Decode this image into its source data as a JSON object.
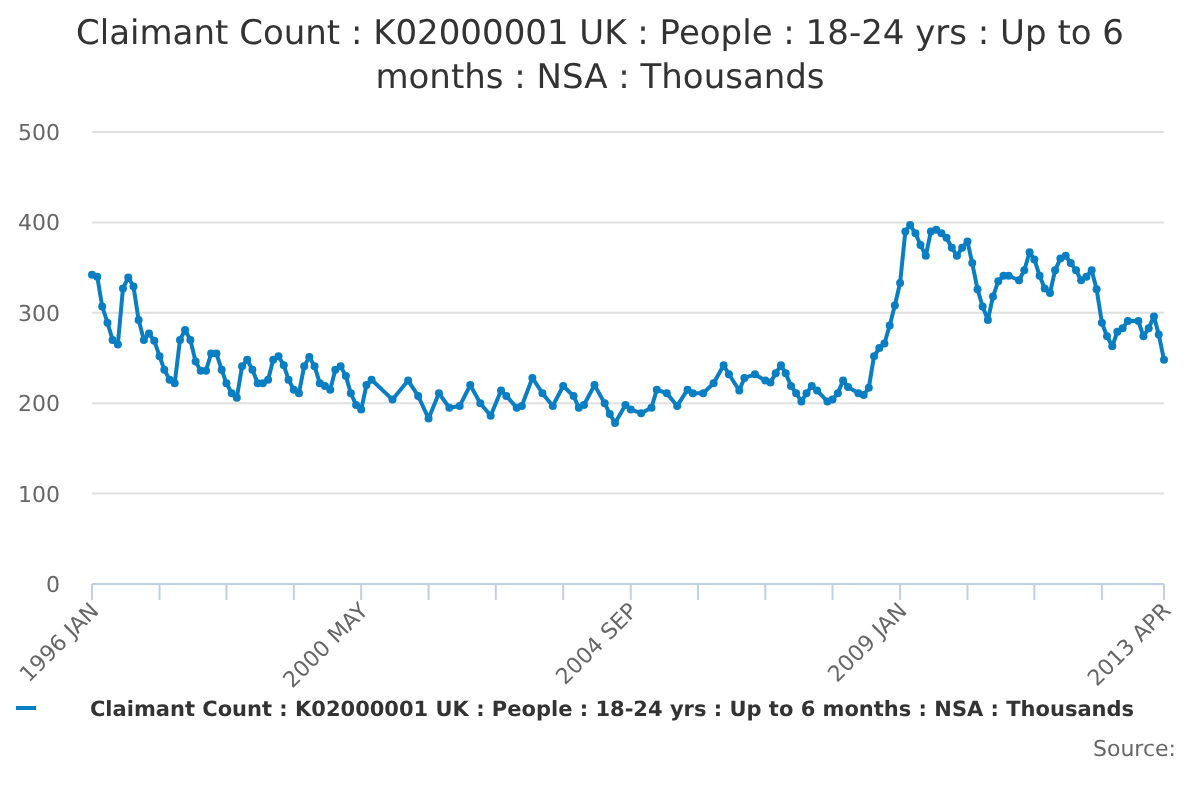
{
  "chart_data": {
    "type": "line",
    "title": "Claimant Count : K02000001 UK : People : 18-24 yrs : Up to 6 months : NSA : Thousands",
    "x": [
      "1996-01",
      "1996-02",
      "1996-03",
      "1996-04",
      "1996-05",
      "1996-06",
      "1996-07",
      "1996-08",
      "1996-09",
      "1996-10",
      "1996-11",
      "1996-12",
      "1997-01",
      "1997-02",
      "1997-03",
      "1997-04",
      "1997-05",
      "1997-06",
      "1997-07",
      "1997-08",
      "1997-09",
      "1997-10",
      "1997-11",
      "1997-12",
      "1998-01",
      "1998-02",
      "1998-03",
      "1998-04",
      "1998-05",
      "1998-06",
      "1998-07",
      "1998-08",
      "1998-09",
      "1998-10",
      "1998-11",
      "1998-12",
      "1999-01",
      "1999-02",
      "1999-03",
      "1999-04",
      "1999-05",
      "1999-06",
      "1999-07",
      "1999-08",
      "1999-09",
      "1999-10",
      "1999-11",
      "1999-12",
      "2000-01",
      "2000-02",
      "2000-03",
      "2000-04",
      "2000-05",
      "2000-06",
      "2000-07",
      "2000-11",
      "2001-02",
      "2001-04",
      "2001-06",
      "2001-08",
      "2001-10",
      "2001-12",
      "2002-02",
      "2002-04",
      "2002-06",
      "2002-08",
      "2002-09",
      "2002-11",
      "2002-12",
      "2003-02",
      "2003-04",
      "2003-06",
      "2003-08",
      "2003-10",
      "2003-11",
      "2003-12",
      "2004-02",
      "2004-04",
      "2004-05",
      "2004-06",
      "2004-08",
      "2004-09",
      "2004-11",
      "2005-01",
      "2005-02",
      "2005-04",
      "2005-06",
      "2005-08",
      "2005-09",
      "2005-11",
      "2006-01",
      "2006-03",
      "2006-04",
      "2006-06",
      "2006-07",
      "2006-09",
      "2006-11",
      "2006-12",
      "2007-01",
      "2007-02",
      "2007-03",
      "2007-04",
      "2007-05",
      "2007-06",
      "2007-07",
      "2007-08",
      "2007-09",
      "2007-11",
      "2007-12",
      "2008-01",
      "2008-02",
      "2008-03",
      "2008-05",
      "2008-06",
      "2008-07",
      "2008-08",
      "2008-09",
      "2008-10",
      "2008-11",
      "2008-12",
      "2009-01",
      "2009-02",
      "2009-03",
      "2009-04",
      "2009-05",
      "2009-06",
      "2009-07",
      "2009-08",
      "2009-09",
      "2009-10",
      "2009-11",
      "2009-12",
      "2010-01",
      "2010-02",
      "2010-03",
      "2010-04",
      "2010-05",
      "2010-06",
      "2010-07",
      "2010-08",
      "2010-09",
      "2010-10",
      "2010-12",
      "2011-01",
      "2011-02",
      "2011-03",
      "2011-04",
      "2011-05",
      "2011-06",
      "2011-07",
      "2011-08",
      "2011-09",
      "2011-10",
      "2011-11",
      "2011-12",
      "2012-01",
      "2012-02",
      "2012-03",
      "2012-04",
      "2012-05",
      "2012-06",
      "2012-07",
      "2012-08",
      "2012-09",
      "2012-11",
      "2012-12",
      "2013-01",
      "2013-02",
      "2013-03",
      "2013-04"
    ],
    "series": [
      {
        "name": "Claimant Count : K02000001 UK : People : 18-24 yrs : Up to 6 months : NSA : Thousands",
        "color": "#0a7ec2",
        "values": [
          342,
          340,
          307,
          289,
          270,
          265,
          327,
          339,
          329,
          292,
          270,
          277,
          269,
          252,
          237,
          226,
          222,
          270,
          281,
          270,
          246,
          236,
          236,
          255,
          255,
          237,
          222,
          211,
          206,
          241,
          248,
          237,
          222,
          222,
          226,
          248,
          252,
          242,
          226,
          215,
          211,
          241,
          251,
          241,
          222,
          219,
          215,
          237,
          241,
          230,
          211,
          198,
          193,
          220,
          226,
          204,
          225,
          208,
          183,
          211,
          195,
          197,
          220,
          200,
          186,
          214,
          208,
          195,
          197,
          228,
          211,
          197,
          219,
          208,
          195,
          198,
          220,
          200,
          188,
          178,
          198,
          193,
          189,
          195,
          215,
          211,
          197,
          215,
          211,
          211,
          222,
          242,
          232,
          214,
          228,
          232,
          225,
          223,
          233,
          242,
          233,
          219,
          211,
          202,
          211,
          219,
          214,
          202,
          204,
          211,
          225,
          218,
          211,
          209,
          217,
          252,
          261,
          266,
          286,
          308,
          333,
          390,
          397,
          388,
          375,
          363,
          390,
          392,
          388,
          383,
          372,
          363,
          372,
          379,
          355,
          326,
          307,
          292,
          318,
          335,
          341,
          341,
          336,
          347,
          367,
          359,
          341,
          327,
          322,
          347,
          360,
          363,
          355,
          347,
          336,
          340,
          347,
          326,
          289,
          274,
          263,
          279,
          283,
          291,
          291,
          274,
          283,
          296,
          276,
          248
        ]
      }
    ],
    "xlim": [
      "1996-01",
      "2013-04"
    ],
    "xticks": [
      {
        "value": "1996-01",
        "label": "1996 JAN"
      },
      {
        "value": "1997-02",
        "label": null
      },
      {
        "value": "1998-03",
        "label": null
      },
      {
        "value": "1999-04",
        "label": null
      },
      {
        "value": "2000-05",
        "label": "2000 MAY"
      },
      {
        "value": "2001-06",
        "label": null
      },
      {
        "value": "2002-07",
        "label": null
      },
      {
        "value": "2003-08",
        "label": null
      },
      {
        "value": "2004-09",
        "label": "2004 SEP"
      },
      {
        "value": "2005-10",
        "label": null
      },
      {
        "value": "2006-11",
        "label": null
      },
      {
        "value": "2007-12",
        "label": null
      },
      {
        "value": "2009-01",
        "label": "2009 JAN"
      },
      {
        "value": "2010-02",
        "label": null
      },
      {
        "value": "2011-03",
        "label": null
      },
      {
        "value": "2012-04",
        "label": null
      },
      {
        "value": "2013-04",
        "label": "2013 APR"
      }
    ],
    "ylim": [
      0,
      500
    ],
    "yticks": [
      0,
      100,
      200,
      300,
      400,
      500
    ],
    "grid": "y",
    "marker": "circle",
    "line_style": "solid",
    "legend": "bottom",
    "annotations": [
      "Source:"
    ]
  }
}
